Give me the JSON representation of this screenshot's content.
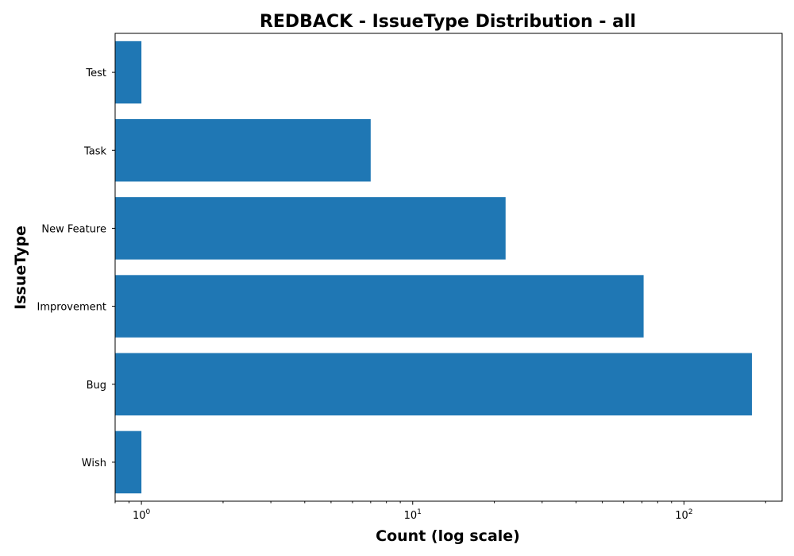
{
  "chart_data": {
    "type": "bar",
    "orientation": "horizontal",
    "title": "REDBACK - IssueType Distribution - all",
    "xlabel": "Count (log scale)",
    "ylabel": "IssueType",
    "x_scale": "log",
    "xlim": [
      0.8,
      230
    ],
    "x_ticks": [
      {
        "base": "10",
        "exp": "0",
        "value": 1
      },
      {
        "base": "10",
        "exp": "1",
        "value": 10
      },
      {
        "base": "10",
        "exp": "2",
        "value": 100
      }
    ],
    "categories": [
      "Test",
      "Task",
      "New Feature",
      "Improvement",
      "Bug",
      "Wish"
    ],
    "values": [
      1,
      7,
      22,
      71,
      178,
      1
    ],
    "bar_color": "#1f77b4",
    "grid": false,
    "legend": "none"
  }
}
